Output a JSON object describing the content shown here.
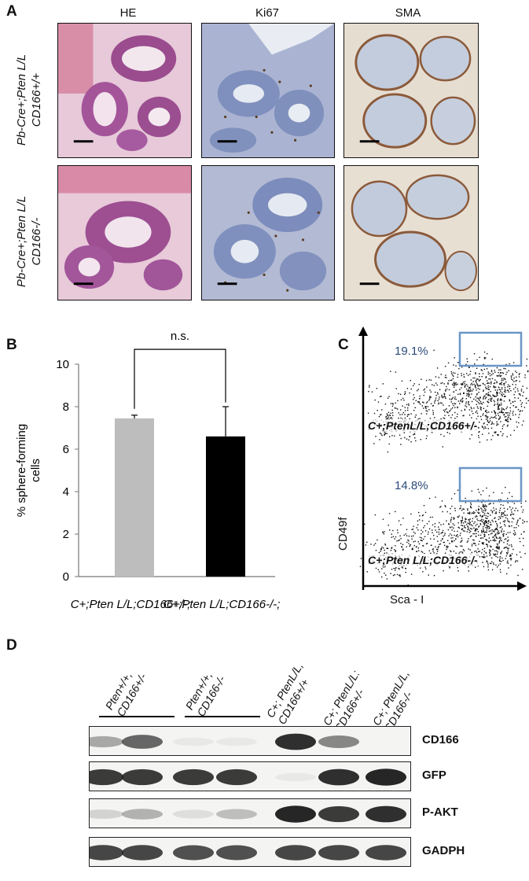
{
  "panel_letters": {
    "a": "A",
    "b": "B",
    "c": "C",
    "d": "D"
  },
  "panelA": {
    "columns": [
      "HE",
      "Ki67",
      "SMA"
    ],
    "rows": [
      {
        "line1": "Pb-Cre+;Pten L/L",
        "line2": "CD166+/+"
      },
      {
        "line1": "Pb-Cre+;Pten L/L",
        "line2": "CD166-/-"
      }
    ],
    "stain_colors": {
      "HE": "#b05aa0",
      "Ki67": "#8d9cc4",
      "SMA": "#c9b49a"
    }
  },
  "chart_data": {
    "type": "bar",
    "categories": [
      "C+;Pten L/L; CD166+/-",
      "C+;Pten L/L; CD166-/-"
    ],
    "values": [
      7.45,
      6.6
    ],
    "errors": [
      0.15,
      1.4
    ],
    "colors": [
      "#bdbdbd",
      "#000000"
    ],
    "ylabel": "% sphere-forming cells",
    "yticks": [
      0,
      2,
      4,
      6,
      8,
      10
    ],
    "ylim": [
      0,
      10
    ],
    "significance": "n.s."
  },
  "panelC": {
    "ylabel": "CD49f",
    "xlabel": "Sca - I",
    "plots": [
      {
        "percent": "19.1%",
        "genotype": "C+;PtenL/L;CD166+/-"
      },
      {
        "percent": "14.8%",
        "genotype": "C+;Pten L/L;CD166-/-"
      }
    ],
    "gate_color": "#5a8ac0"
  },
  "panelD": {
    "group_labels": [
      {
        "l1": "Pten+/+,",
        "l2": "CD166+/-"
      },
      {
        "l1": "Pten+/+,",
        "l2": "CD166-/-"
      },
      {
        "l1": "C+; PtenL/L,",
        "l2": "CD166+/+"
      },
      {
        "l1": "C+; PtenL/L:",
        "l2": "CD166+/-"
      },
      {
        "l1": "C+; PtenL/L,",
        "l2": "CD166-/-"
      }
    ],
    "blots": [
      {
        "name": "CD166",
        "intensity": [
          0.35,
          0.65,
          0.05,
          0.05,
          0.9,
          0.5,
          0.0,
          0.0
        ]
      },
      {
        "name": "GFP",
        "intensity": [
          0.85,
          0.85,
          0.85,
          0.85,
          0.05,
          0.9,
          0.95,
          0.95
        ]
      },
      {
        "name": "P-AKT",
        "intensity": [
          0.15,
          0.3,
          0.1,
          0.25,
          0.95,
          0.85,
          0.9,
          0.85
        ]
      },
      {
        "name": "GADPH",
        "intensity": [
          0.8,
          0.8,
          0.75,
          0.75,
          0.8,
          0.8,
          0.8,
          0.8
        ]
      }
    ]
  }
}
